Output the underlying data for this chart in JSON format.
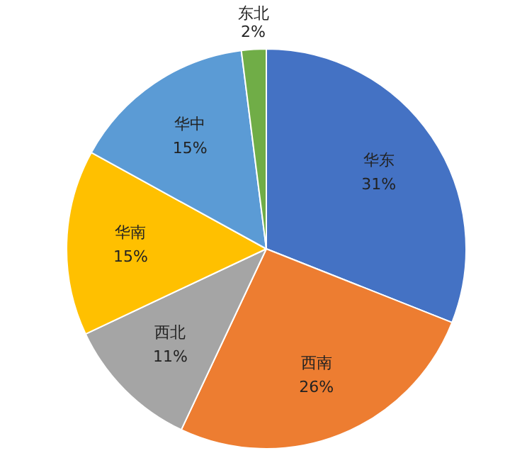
{
  "chart_data": {
    "type": "pie",
    "categories": [
      "华东",
      "西南",
      "西北",
      "华南",
      "华中",
      "东北"
    ],
    "values": [
      31,
      26,
      11,
      15,
      15,
      2
    ],
    "colors": [
      "#4472c4",
      "#ed7d31",
      "#a5a5a5",
      "#ffc000",
      "#5b9bd5",
      "#70ad47"
    ],
    "value_labels": [
      "31%",
      "26%",
      "11%",
      "15%",
      "15%",
      "2%"
    ],
    "legend": false
  }
}
